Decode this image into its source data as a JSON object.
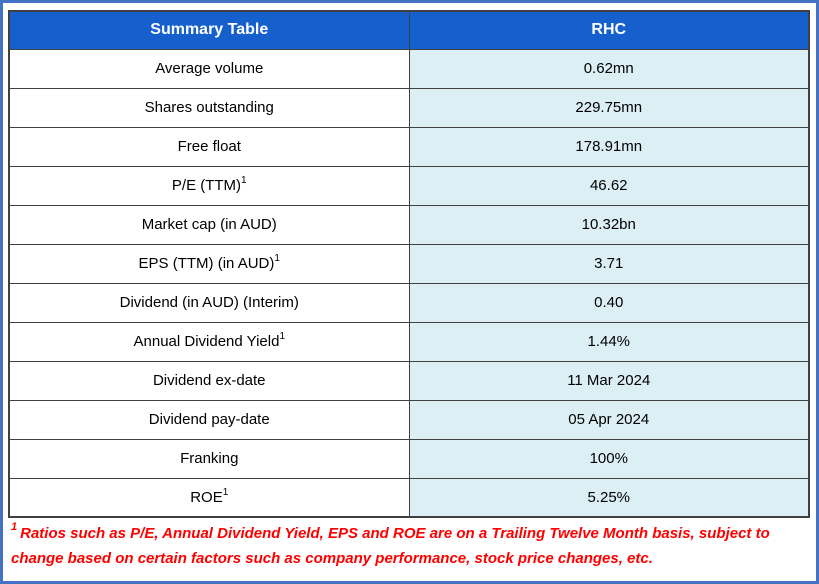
{
  "colors": {
    "outer_border": "#4472C4",
    "grid_border": "#404040",
    "header_bg": "#1660CE",
    "header_text": "#FFFFFF",
    "label_cell_bg": "#FFFFFF",
    "value_cell_bg": "#DCEFF5",
    "footnote_text": "#FF0000"
  },
  "table": {
    "columns": [
      "Summary Table",
      "RHC"
    ],
    "rows": [
      {
        "label": "Average volume",
        "value": "0.62mn"
      },
      {
        "label": "Shares outstanding",
        "value": "229.75mn"
      },
      {
        "label": "Free float",
        "value": "178.91mn"
      },
      {
        "label": "P/E (TTM)",
        "sup": "1",
        "value": "46.62"
      },
      {
        "label": "Market cap (in AUD)",
        "value": "10.32bn"
      },
      {
        "label": "EPS (TTM) (in AUD)",
        "sup": "1",
        "value": "3.71"
      },
      {
        "label": "Dividend (in AUD) (Interim)",
        "value": "0.40"
      },
      {
        "label": "Annual Dividend Yield",
        "sup": "1",
        "value": "1.44%"
      },
      {
        "label": "Dividend ex-date",
        "value": "11 Mar 2024"
      },
      {
        "label": "Dividend pay-date",
        "value": "05 Apr 2024"
      },
      {
        "label": "Franking",
        "value": "100%"
      },
      {
        "label": "ROE",
        "sup": "1",
        "value": "5.25%"
      }
    ]
  },
  "footnote": {
    "sup": "1",
    "text": "Ratios such as P/E, Annual Dividend Yield, EPS and ROE are on a Trailing Twelve Month basis, subject to change based on certain factors such as company performance, stock price changes, etc."
  }
}
